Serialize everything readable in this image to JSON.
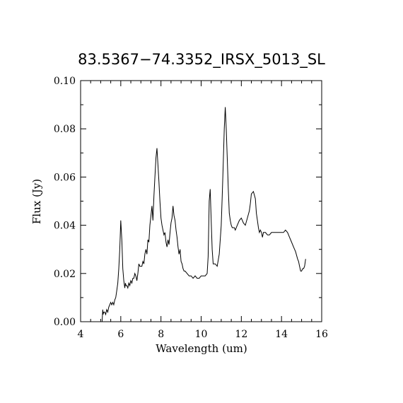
{
  "chart_data": {
    "type": "line",
    "title": "83.5367−74.3352_IRSX_5013_SL",
    "xlabel": "Wavelength (um)",
    "ylabel": "Flux (Jy)",
    "xlim": [
      4,
      16
    ],
    "ylim": [
      0.0,
      0.1
    ],
    "x_ticks": [
      4,
      6,
      8,
      10,
      12,
      14,
      16
    ],
    "x_tick_labels": [
      "4",
      "6",
      "8",
      "10",
      "12",
      "14",
      "16"
    ],
    "y_ticks": [
      0.0,
      0.02,
      0.04,
      0.06,
      0.08,
      0.1
    ],
    "y_tick_labels": [
      "0.00",
      "0.02",
      "0.04",
      "0.06",
      "0.08",
      "0.10"
    ],
    "grid": false,
    "series": [
      {
        "color": "#000000",
        "x": [
          5.07,
          5.1,
          5.12,
          5.15,
          5.2,
          5.25,
          5.3,
          5.35,
          5.4,
          5.45,
          5.5,
          5.55,
          5.6,
          5.65,
          5.7,
          5.75,
          5.8,
          5.85,
          5.9,
          5.95,
          6.0,
          6.05,
          6.1,
          6.15,
          6.2,
          6.23,
          6.26,
          6.3,
          6.35,
          6.4,
          6.45,
          6.5,
          6.55,
          6.6,
          6.65,
          6.7,
          6.75,
          6.8,
          6.85,
          6.9,
          6.95,
          7.0,
          7.05,
          7.1,
          7.15,
          7.2,
          7.25,
          7.3,
          7.35,
          7.4,
          7.45,
          7.5,
          7.55,
          7.6,
          7.65,
          7.7,
          7.75,
          7.8,
          7.85,
          7.9,
          7.95,
          8.0,
          8.05,
          8.1,
          8.15,
          8.2,
          8.25,
          8.3,
          8.35,
          8.4,
          8.45,
          8.5,
          8.55,
          8.6,
          8.65,
          8.7,
          8.75,
          8.8,
          8.85,
          8.9,
          8.95,
          9.0,
          9.05,
          9.1,
          9.15,
          9.2,
          9.3,
          9.4,
          9.5,
          9.6,
          9.7,
          9.8,
          9.9,
          10.0,
          10.1,
          10.2,
          10.3,
          10.35,
          10.4,
          10.45,
          10.5,
          10.55,
          10.6,
          10.7,
          10.8,
          10.9,
          11.0,
          11.05,
          11.1,
          11.15,
          11.2,
          11.25,
          11.3,
          11.35,
          11.4,
          11.45,
          11.5,
          11.55,
          11.6,
          11.65,
          11.7,
          11.8,
          11.9,
          12.0,
          12.05,
          12.1,
          12.2,
          12.3,
          12.4,
          12.45,
          12.5,
          12.6,
          12.7,
          12.75,
          12.8,
          12.85,
          12.9,
          12.95,
          13.0,
          13.05,
          13.1,
          13.15,
          13.2,
          13.3,
          13.4,
          13.5,
          13.6,
          13.7,
          13.8,
          13.9,
          14.0,
          14.1,
          14.2,
          14.3,
          14.4,
          14.5,
          14.6,
          14.7,
          14.8,
          14.85,
          14.9,
          14.95,
          15.0,
          15.05,
          15.1,
          15.15,
          15.2
        ],
        "y": [
          0.0,
          0.005,
          0.003,
          0.004,
          0.004,
          0.003,
          0.005,
          0.004,
          0.006,
          0.007,
          0.008,
          0.007,
          0.008,
          0.007,
          0.009,
          0.01,
          0.013,
          0.016,
          0.022,
          0.03,
          0.042,
          0.034,
          0.022,
          0.017,
          0.014,
          0.016,
          0.015,
          0.015,
          0.014,
          0.016,
          0.015,
          0.017,
          0.016,
          0.018,
          0.018,
          0.02,
          0.019,
          0.017,
          0.02,
          0.024,
          0.023,
          0.023,
          0.023,
          0.025,
          0.024,
          0.028,
          0.03,
          0.028,
          0.034,
          0.033,
          0.04,
          0.044,
          0.048,
          0.042,
          0.052,
          0.06,
          0.068,
          0.072,
          0.065,
          0.058,
          0.05,
          0.043,
          0.04,
          0.038,
          0.036,
          0.037,
          0.033,
          0.031,
          0.034,
          0.032,
          0.037,
          0.041,
          0.043,
          0.048,
          0.044,
          0.042,
          0.038,
          0.035,
          0.031,
          0.028,
          0.03,
          0.025,
          0.024,
          0.022,
          0.021,
          0.021,
          0.02,
          0.019,
          0.019,
          0.018,
          0.019,
          0.018,
          0.018,
          0.019,
          0.019,
          0.019,
          0.02,
          0.027,
          0.05,
          0.055,
          0.042,
          0.03,
          0.024,
          0.024,
          0.023,
          0.028,
          0.04,
          0.052,
          0.066,
          0.08,
          0.089,
          0.08,
          0.068,
          0.055,
          0.045,
          0.042,
          0.04,
          0.039,
          0.039,
          0.039,
          0.038,
          0.04,
          0.042,
          0.043,
          0.042,
          0.041,
          0.04,
          0.043,
          0.046,
          0.049,
          0.053,
          0.054,
          0.051,
          0.045,
          0.042,
          0.039,
          0.037,
          0.038,
          0.037,
          0.035,
          0.037,
          0.037,
          0.037,
          0.036,
          0.036,
          0.037,
          0.037,
          0.037,
          0.037,
          0.037,
          0.037,
          0.037,
          0.038,
          0.037,
          0.035,
          0.033,
          0.031,
          0.029,
          0.026,
          0.025,
          0.023,
          0.021,
          0.021,
          0.022,
          0.022,
          0.023,
          0.026
        ]
      }
    ]
  }
}
